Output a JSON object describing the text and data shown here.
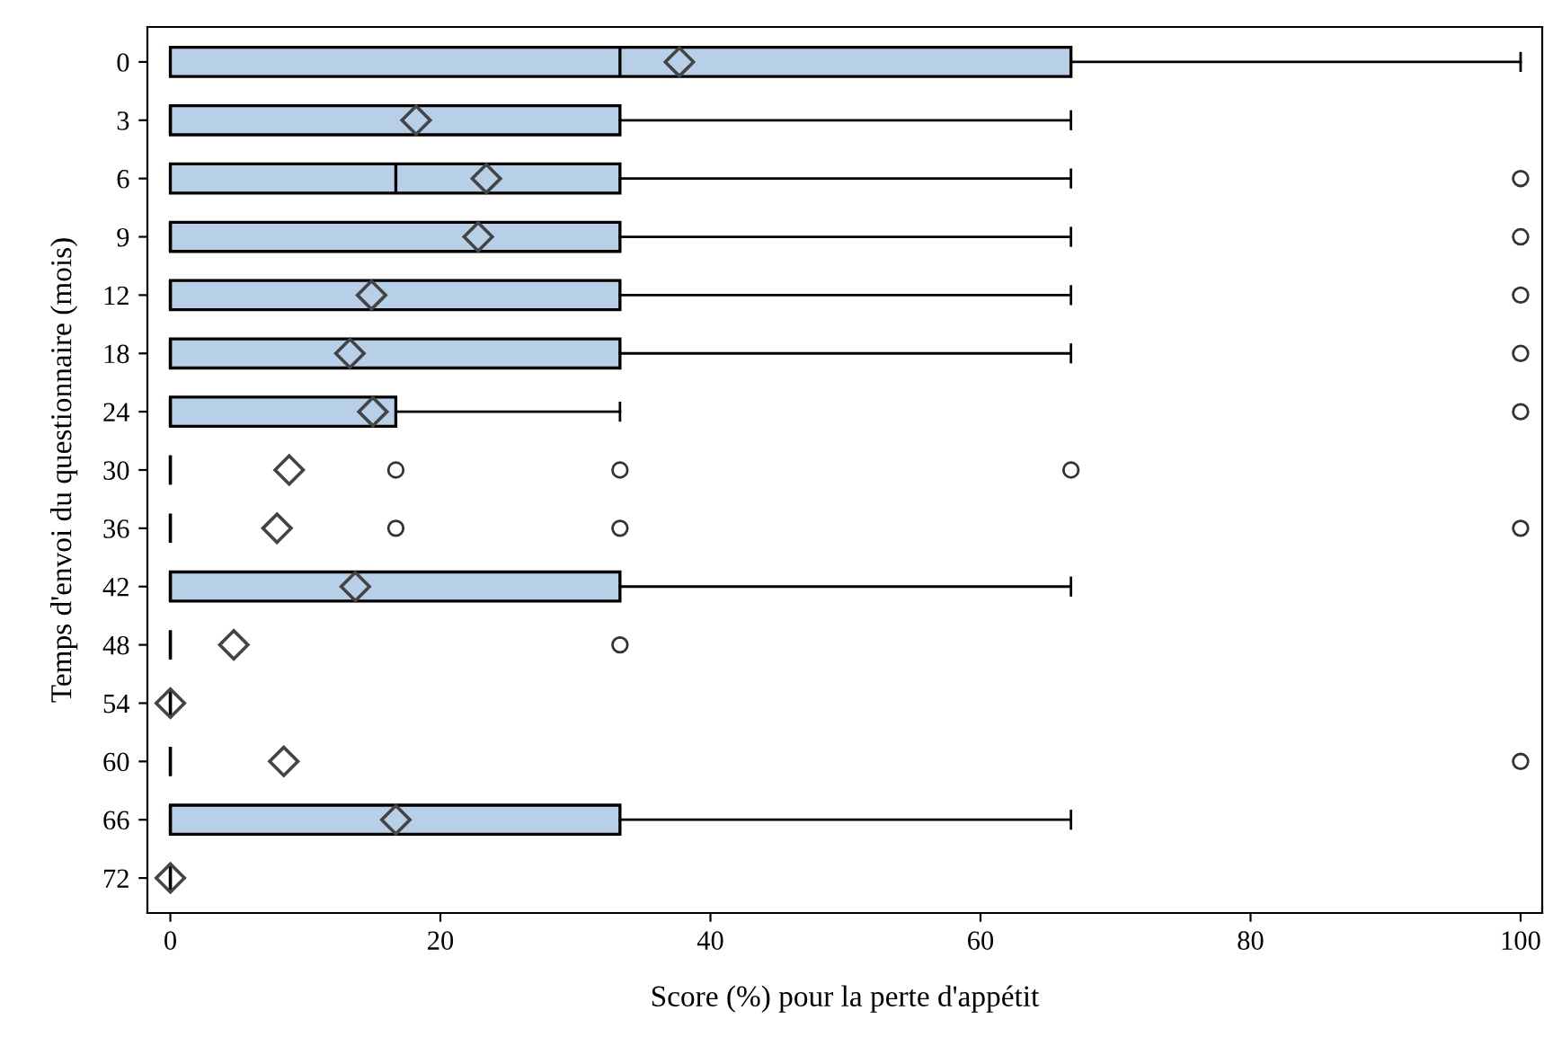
{
  "chart_data": {
    "type": "box",
    "orientation": "horizontal",
    "xlabel": "Score (%) pour la perte d'appétit",
    "ylabel": "Temps d'envoi du questionnaire (mois)",
    "categories": [
      "0",
      "3",
      "6",
      "9",
      "12",
      "18",
      "24",
      "30",
      "36",
      "42",
      "48",
      "54",
      "60",
      "66",
      "72"
    ],
    "colors": [
      "#b8cfe8",
      "#b8cfe8",
      "#b8cfe8",
      "#b8cfe8",
      "#b8cfe8",
      "#b8cfe8",
      "#b8cfe8",
      "#000000",
      "#000000",
      "#b8cfe8",
      "#000000",
      "#000000",
      "#000000",
      "#b8cfe8",
      "#000000"
    ],
    "marker": "diamond",
    "grid": false,
    "legend": false,
    "xlim": [
      -1.7,
      101.6
    ],
    "xticks": [
      0,
      20,
      40,
      60,
      80,
      100
    ],
    "boxes": [
      {
        "low": 0,
        "q1": 0,
        "median": 33.3,
        "q3": 66.7,
        "high": 100,
        "mean": 37.7
      },
      {
        "low": 0,
        "q1": 0,
        "median": 0,
        "q3": 33.3,
        "high": 66.7,
        "mean": 18.2
      },
      {
        "low": 0,
        "q1": 0,
        "median": 16.7,
        "q3": 33.3,
        "high": 66.7,
        "mean": 23.4,
        "outliers": [
          100
        ]
      },
      {
        "low": 0,
        "q1": 0,
        "median": 0,
        "q3": 33.3,
        "high": 66.7,
        "mean": 22.8,
        "outliers": [
          100
        ]
      },
      {
        "low": 0,
        "q1": 0,
        "median": 0,
        "q3": 33.3,
        "high": 66.7,
        "mean": 14.9,
        "outliers": [
          100
        ]
      },
      {
        "low": 0,
        "q1": 0,
        "median": 0,
        "q3": 33.3,
        "high": 66.7,
        "mean": 13.3,
        "outliers": [
          100
        ]
      },
      {
        "low": 0,
        "q1": 0,
        "median": 0,
        "q3": 16.7,
        "high": 33.3,
        "mean": 15.0,
        "outliers": [
          100
        ]
      },
      {
        "low": 0,
        "q1": 0,
        "median": 0,
        "q3": 0,
        "high": 0,
        "mean": 8.8,
        "outliers": [
          16.7,
          33.3,
          66.7
        ]
      },
      {
        "low": 0,
        "q1": 0,
        "median": 0,
        "q3": 0,
        "high": 0,
        "mean": 7.9,
        "outliers": [
          16.7,
          33.3,
          100
        ]
      },
      {
        "low": 0,
        "q1": 0,
        "median": 0,
        "q3": 33.3,
        "high": 66.7,
        "mean": 13.7
      },
      {
        "low": 0,
        "q1": 0,
        "median": 0,
        "q3": 0,
        "high": 0,
        "mean": 4.7,
        "outliers": [
          33.3
        ]
      },
      {
        "low": 0,
        "q1": 0,
        "median": 0,
        "q3": 0,
        "high": 0,
        "mean": 0
      },
      {
        "low": 0,
        "q1": 0,
        "median": 0,
        "q3": 0,
        "high": 0,
        "mean": 8.4,
        "outliers": [
          100
        ]
      },
      {
        "low": 0,
        "q1": 0,
        "median": 0,
        "q3": 33.3,
        "high": 66.7,
        "mean": 16.7
      },
      {
        "low": 0,
        "q1": 0,
        "median": 0,
        "q3": 0,
        "high": 0,
        "mean": 0
      }
    ]
  }
}
